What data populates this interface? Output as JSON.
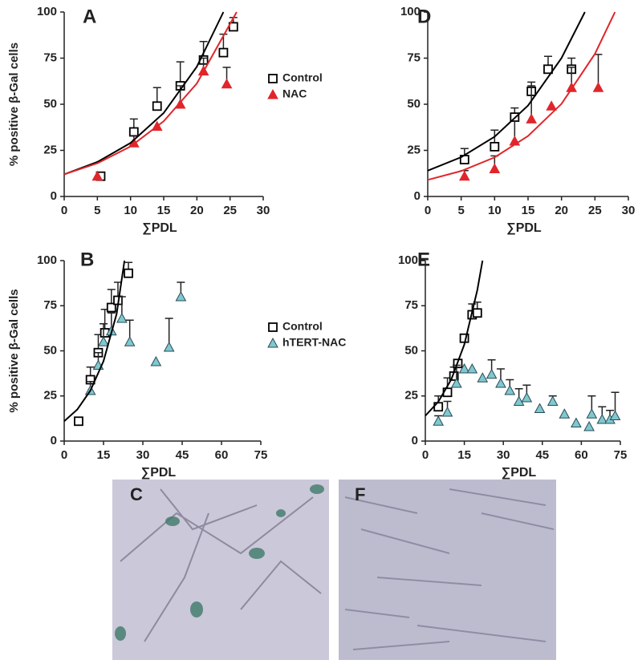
{
  "chart_data": [
    {
      "type": "scatter",
      "panel": "A",
      "ylabel": "% positive β-Gal cells",
      "xlabel": "∑PDL",
      "xlim": [
        0,
        30
      ],
      "ylim": [
        0,
        100
      ],
      "xticks": [
        0,
        5,
        10,
        15,
        20,
        25,
        30
      ],
      "yticks": [
        0,
        25,
        50,
        75,
        100
      ],
      "legend": true,
      "series": [
        {
          "name": "Control",
          "color": "#000000",
          "marker": "square",
          "x": [
            5.5,
            10.5,
            14,
            17.5,
            21,
            24,
            25.5
          ],
          "values": [
            11,
            35,
            49,
            60,
            74,
            78,
            92
          ],
          "errors": [
            null,
            7,
            10,
            13,
            10,
            10,
            5
          ]
        },
        {
          "name": "NAC",
          "color": "#e0262b",
          "marker": "triangle",
          "x": [
            5,
            10.5,
            14,
            17.5,
            21,
            24.5
          ],
          "values": [
            11,
            29,
            38,
            50,
            68,
            61
          ],
          "errors": [
            null,
            4,
            null,
            10,
            7,
            9
          ]
        },
        {
          "color": "#000000",
          "marker": "line",
          "x": [
            0,
            5,
            10,
            15,
            20,
            24
          ],
          "values": [
            12,
            18.7,
            29,
            45.3,
            70.4,
            100
          ]
        },
        {
          "color": "#e0262b",
          "marker": "line",
          "x": [
            0,
            5,
            10,
            15,
            20,
            26
          ],
          "values": [
            12,
            18,
            27.1,
            40.8,
            61.3,
            100
          ]
        }
      ]
    },
    {
      "type": "scatter",
      "panel": "D",
      "xlabel": "∑PDL",
      "xlim": [
        0,
        30
      ],
      "ylim": [
        0,
        100
      ],
      "xticks": [
        0,
        5,
        10,
        15,
        20,
        25,
        30
      ],
      "yticks": [
        0,
        25,
        50,
        75,
        100
      ],
      "series": [
        {
          "name": "Control",
          "color": "#000000",
          "marker": "square",
          "x": [
            5.5,
            10,
            13,
            15.5,
            18,
            21.5
          ],
          "values": [
            20,
            27,
            43,
            57,
            69,
            69
          ],
          "errors": [
            6,
            9,
            5,
            5,
            7,
            6
          ]
        },
        {
          "name": "NAC",
          "color": "#e0262b",
          "marker": "triangle",
          "x": [
            5.5,
            10,
            13,
            15.5,
            18.5,
            21.5,
            25.5
          ],
          "values": [
            11,
            15,
            30,
            42,
            49,
            59,
            59
          ],
          "errors": [
            3,
            7,
            11,
            18,
            null,
            11,
            18
          ]
        },
        {
          "color": "#000000",
          "marker": "line",
          "x": [
            0,
            5,
            10,
            15,
            20,
            23.5
          ],
          "values": [
            14,
            21.3,
            32.4,
            49.3,
            75,
            100
          ]
        },
        {
          "color": "#e0262b",
          "marker": "line",
          "x": [
            0,
            5,
            10,
            15,
            20,
            25,
            28
          ],
          "values": [
            9,
            13.8,
            21.2,
            32.8,
            50.2,
            77.3,
            100
          ]
        }
      ]
    },
    {
      "type": "scatter",
      "panel": "B",
      "ylabel": "% positive β-Gal cells",
      "xlabel": "∑PDL",
      "xlim": [
        0,
        75
      ],
      "ylim": [
        0,
        100
      ],
      "xticks": [
        0,
        15,
        30,
        45,
        60,
        75
      ],
      "yticks": [
        0,
        25,
        50,
        75,
        100
      ],
      "legend": true,
      "series": [
        {
          "name": "Control",
          "color": "#000000",
          "marker": "square",
          "x": [
            5.5,
            10,
            13,
            15.5,
            18,
            20.5,
            24.5
          ],
          "values": [
            11,
            34,
            49,
            60,
            74,
            78,
            93
          ],
          "errors": [
            null,
            7,
            10,
            13,
            10,
            10,
            6
          ]
        },
        {
          "name": "hTERT-NAC",
          "color": "#7fc8d0",
          "marker": "triangle",
          "x": [
            10,
            13,
            15,
            18,
            22,
            25,
            35,
            40,
            44.5
          ],
          "values": [
            28,
            42,
            55,
            61,
            68,
            55,
            44,
            52,
            80
          ],
          "errors": [
            5,
            7,
            10,
            10,
            12,
            12,
            null,
            16,
            8
          ]
        },
        {
          "color": "#000000",
          "marker": "line",
          "x": [
            0,
            5,
            10,
            15,
            20,
            23
          ],
          "values": [
            11,
            17.5,
            28,
            44.3,
            70.5,
            100
          ]
        }
      ]
    },
    {
      "type": "scatter",
      "panel": "E",
      "xlabel": "∑PDL",
      "xlim": [
        0,
        75
      ],
      "ylim": [
        0,
        100
      ],
      "xticks": [
        0,
        15,
        30,
        45,
        60,
        75
      ],
      "yticks": [
        0,
        25,
        50,
        75,
        100
      ],
      "series": [
        {
          "name": "Control",
          "color": "#000000",
          "marker": "square",
          "x": [
            5,
            8.5,
            11,
            12.5,
            15,
            18,
            20
          ],
          "values": [
            19,
            27,
            36,
            43,
            57,
            70,
            71
          ],
          "errors": [
            6,
            8,
            5,
            null,
            null,
            6,
            6
          ]
        },
        {
          "name": "hTERT-NAC",
          "color": "#7fc8d0",
          "marker": "triangle",
          "x": [
            5,
            8.5,
            12,
            15,
            18,
            22,
            25.5,
            29,
            32.5,
            36,
            39,
            44,
            49,
            53.5,
            58,
            63,
            64,
            68,
            71,
            73
          ],
          "values": [
            11,
            16,
            32,
            40,
            40,
            35,
            37,
            32,
            28,
            22,
            24,
            18,
            22,
            15,
            10,
            8,
            15,
            12,
            12,
            14
          ],
          "errors": [
            3,
            6,
            10,
            null,
            null,
            null,
            8,
            8,
            6,
            7,
            7,
            null,
            3,
            null,
            null,
            null,
            10,
            7,
            5,
            13
          ]
        },
        {
          "color": "#000000",
          "marker": "line",
          "x": [
            0,
            5,
            10,
            15,
            20,
            22
          ],
          "values": [
            14,
            21.8,
            34.2,
            53.5,
            83.7,
            100
          ]
        }
      ]
    }
  ],
  "images": [
    {
      "label": "C"
    },
    {
      "label": "F"
    }
  ]
}
